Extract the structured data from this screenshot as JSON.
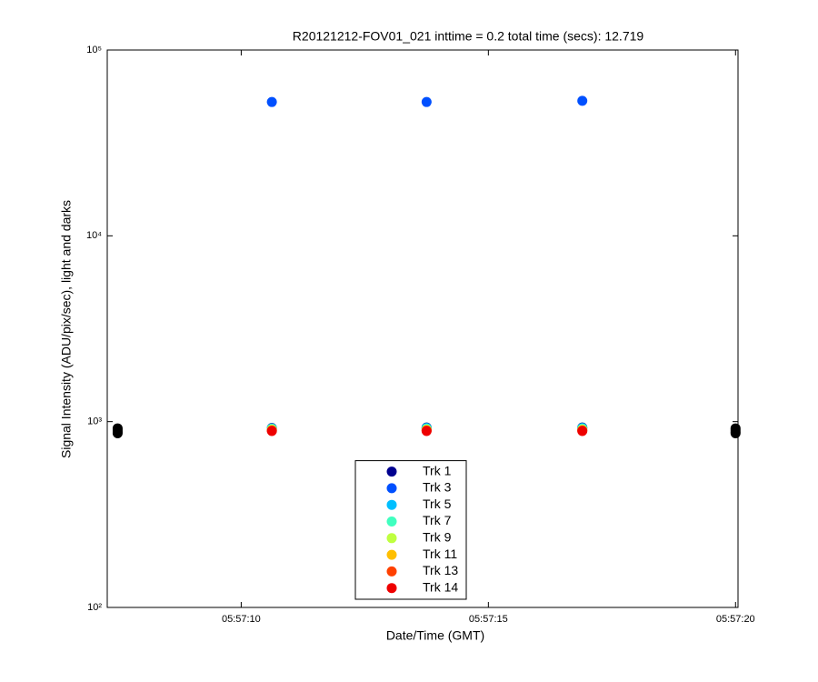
{
  "chart_data": {
    "type": "scatter",
    "title": "R20121212-FOV01_021 inttime = 0.2 total time (secs): 12.719",
    "x_label": "Date/Time (GMT)",
    "y_label": "Signal Intensity (ADU/pix/sec), light and darks",
    "log_y": true,
    "legend": "bottom",
    "xlim": [
      "05:57:07.29",
      "05:57:20.05"
    ],
    "xticks": [
      "05:57:10",
      "05:57:15",
      "05:57:20"
    ],
    "ylim": [
      100,
      100000
    ],
    "yticks": [
      {
        "value": 100,
        "label": "10²"
      },
      {
        "value": 1000,
        "label": "10³"
      },
      {
        "value": 10000,
        "label": "10⁴"
      },
      {
        "value": 100000,
        "label": "10⁵"
      }
    ],
    "series": [
      {
        "name": "Trk 1",
        "color": "#00008f",
        "x": [
          "05:57:10.62",
          "05:57:13.75",
          "05:57:16.90"
        ],
        "values": [
          925,
          930,
          930
        ]
      },
      {
        "name": "Trk 3",
        "color": "#0050ff",
        "x": [
          "05:57:10.62",
          "05:57:13.75",
          "05:57:16.90"
        ],
        "values": [
          52500,
          52500,
          53300
        ]
      },
      {
        "name": "Trk 5",
        "color": "#00bfff",
        "x": [
          "05:57:10.62",
          "05:57:13.75",
          "05:57:16.90"
        ],
        "values": [
          920,
          925,
          925
        ]
      },
      {
        "name": "Trk 7",
        "color": "#40ffbf",
        "x": [
          "05:57:10.62",
          "05:57:13.75",
          "05:57:16.90"
        ],
        "values": [
          915,
          915,
          915
        ]
      },
      {
        "name": "Trk 9",
        "color": "#bfff40",
        "x": [
          "05:57:10.62",
          "05:57:13.75",
          "05:57:16.90"
        ],
        "values": [
          905,
          905,
          905
        ]
      },
      {
        "name": "Trk 11",
        "color": "#ffbf00",
        "x": [
          "05:57:10.62",
          "05:57:13.75",
          "05:57:16.90"
        ],
        "values": [
          900,
          900,
          900
        ]
      },
      {
        "name": "Trk 13",
        "color": "#ff4000",
        "x": [
          "05:57:10.62",
          "05:57:13.75",
          "05:57:16.90"
        ],
        "values": [
          895,
          895,
          895
        ]
      },
      {
        "name": "Trk 14",
        "color": "#ee0000",
        "x": [
          "05:57:10.62",
          "05:57:13.75",
          "05:57:16.90"
        ],
        "values": [
          890,
          890,
          890
        ]
      },
      {
        "color": "#000000",
        "x": [
          "05:57:07.5",
          "05:57:07.5",
          "05:57:07.5",
          "05:57:07.5",
          "05:57:20.0",
          "05:57:20.0",
          "05:57:20.0",
          "05:57:20.0"
        ],
        "values": [
          865,
          880,
          900,
          920,
          865,
          880,
          900,
          920
        ]
      }
    ]
  }
}
